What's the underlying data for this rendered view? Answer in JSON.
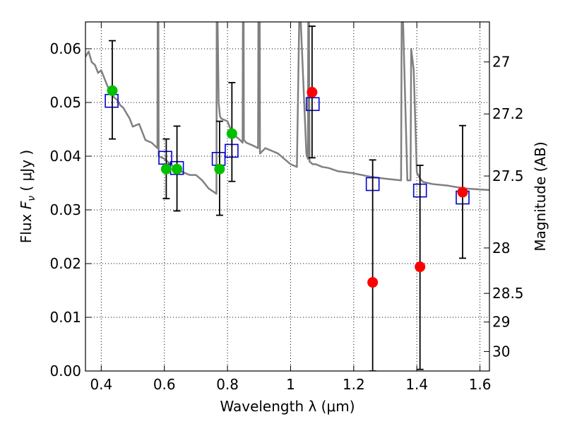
{
  "chart_data": {
    "type": "scatter",
    "xlabel": "Wavelength  λ (μm)",
    "ylabel_left": "Flux  F_ν ( μJy )",
    "ylabel_left_parts": {
      "prefix": "Flux  ",
      "var": "F",
      "sub": "ν",
      "unit": " ( μJy )"
    },
    "ylabel_right": "Magnitude (AB)",
    "xlim": [
      0.35,
      1.63
    ],
    "ylim": [
      0.0,
      0.065
    ],
    "grid": true,
    "x_ticks": [
      {
        "value": 0.4,
        "label": "0.4"
      },
      {
        "value": 0.6,
        "label": "0.6"
      },
      {
        "value": 0.8,
        "label": "0.8"
      },
      {
        "value": 1.0,
        "label": "1"
      },
      {
        "value": 1.2,
        "label": "1.2"
      },
      {
        "value": 1.4,
        "label": "1.4"
      },
      {
        "value": 1.6,
        "label": "1.6"
      }
    ],
    "y_ticks": [
      {
        "value": 0.0,
        "label": "0.00"
      },
      {
        "value": 0.01,
        "label": "0.01"
      },
      {
        "value": 0.02,
        "label": "0.02"
      },
      {
        "value": 0.03,
        "label": "0.03"
      },
      {
        "value": 0.04,
        "label": "0.04"
      },
      {
        "value": 0.05,
        "label": "0.05"
      },
      {
        "value": 0.06,
        "label": "0.06"
      }
    ],
    "mag_ticks": [
      {
        "mag": 27,
        "label": "27"
      },
      {
        "mag": 27.2,
        "label": "27.2"
      },
      {
        "mag": 27.5,
        "label": "27.5"
      },
      {
        "mag": 28,
        "label": "28"
      },
      {
        "mag": 28.5,
        "label": "28.5"
      },
      {
        "mag": 29,
        "label": "29"
      },
      {
        "mag": 30,
        "label": "30"
      }
    ],
    "colors": {
      "model": "#808080",
      "detection": "#00c000",
      "upper": "#ff0000",
      "model_flux": "#0000cc",
      "errorbar": "#000000"
    },
    "model_spectrum": {
      "x": [
        0.35,
        0.36,
        0.37,
        0.38,
        0.39,
        0.4,
        0.41,
        0.42,
        0.43,
        0.44,
        0.45,
        0.46,
        0.47,
        0.48,
        0.49,
        0.5,
        0.52,
        0.54,
        0.56,
        0.578,
        0.579,
        0.581,
        0.582,
        0.6,
        0.62,
        0.64,
        0.66,
        0.68,
        0.7,
        0.72,
        0.74,
        0.765,
        0.766,
        0.768,
        0.772,
        0.776,
        0.78,
        0.8,
        0.81,
        0.82,
        0.84,
        0.848,
        0.849,
        0.851,
        0.852,
        0.86,
        0.88,
        0.897,
        0.898,
        0.902,
        0.903,
        0.92,
        0.94,
        0.96,
        0.98,
        1.0,
        1.02,
        1.028,
        1.03,
        1.05,
        1.055,
        1.056,
        1.058,
        1.06,
        1.07,
        1.08,
        1.1,
        1.12,
        1.15,
        1.2,
        1.25,
        1.3,
        1.35,
        1.352,
        1.355,
        1.37,
        1.38,
        1.382,
        1.39,
        1.4,
        1.41,
        1.42,
        1.45,
        1.5,
        1.55,
        1.6,
        1.63
      ],
      "y": [
        0.0585,
        0.0595,
        0.0575,
        0.057,
        0.0555,
        0.056,
        0.0545,
        0.053,
        0.052,
        0.051,
        0.0505,
        0.0495,
        0.049,
        0.048,
        0.047,
        0.0455,
        0.046,
        0.043,
        0.0425,
        0.0415,
        0.068,
        0.068,
        0.04,
        0.0395,
        0.0385,
        0.0375,
        0.037,
        0.0365,
        0.0365,
        0.0355,
        0.034,
        0.033,
        0.068,
        0.068,
        0.05,
        0.0475,
        0.047,
        0.0465,
        0.045,
        0.044,
        0.043,
        0.0425,
        0.068,
        0.068,
        0.043,
        0.0425,
        0.042,
        0.0415,
        0.068,
        0.068,
        0.0405,
        0.0415,
        0.041,
        0.0405,
        0.0395,
        0.0385,
        0.038,
        0.068,
        0.068,
        0.0405,
        0.0395,
        0.068,
        0.068,
        0.039,
        0.0385,
        0.0385,
        0.038,
        0.0378,
        0.0372,
        0.0368,
        0.0362,
        0.0358,
        0.0355,
        0.068,
        0.068,
        0.0355,
        0.0355,
        0.06,
        0.056,
        0.037,
        0.0358,
        0.0352,
        0.0348,
        0.0345,
        0.034,
        0.0338,
        0.0337
      ]
    },
    "observed_detections": [
      {
        "x": 0.435,
        "y": 0.0522,
        "err_low": 0.0432,
        "err_high": 0.0615
      },
      {
        "x": 0.606,
        "y": 0.0376,
        "err_low": 0.0321,
        "err_high": 0.0432
      },
      {
        "x": 0.64,
        "y": 0.0376,
        "err_low": 0.0298,
        "err_high": 0.0456
      },
      {
        "x": 0.775,
        "y": 0.0376,
        "err_low": 0.029,
        "err_high": 0.0465
      },
      {
        "x": 0.814,
        "y": 0.0442,
        "err_low": 0.0353,
        "err_high": 0.0537
      }
    ],
    "observed_red": [
      {
        "x": 1.068,
        "y": 0.0519,
        "err_low": 0.0397,
        "err_high": 0.0642
      },
      {
        "x": 1.26,
        "y": 0.0165,
        "err_low": 0.0,
        "err_high": 0.0393
      },
      {
        "x": 1.41,
        "y": 0.0194,
        "err_low": 0.0003,
        "err_high": 0.0383
      },
      {
        "x": 1.545,
        "y": 0.0333,
        "err_low": 0.021,
        "err_high": 0.0457
      }
    ],
    "model_fluxes": [
      {
        "x": 0.433,
        "y": 0.0503
      },
      {
        "x": 0.603,
        "y": 0.0397
      },
      {
        "x": 0.64,
        "y": 0.0378
      },
      {
        "x": 0.772,
        "y": 0.0395
      },
      {
        "x": 0.813,
        "y": 0.041
      },
      {
        "x": 1.07,
        "y": 0.0497
      },
      {
        "x": 1.26,
        "y": 0.0348
      },
      {
        "x": 1.41,
        "y": 0.0336
      },
      {
        "x": 1.545,
        "y": 0.0323
      }
    ]
  }
}
